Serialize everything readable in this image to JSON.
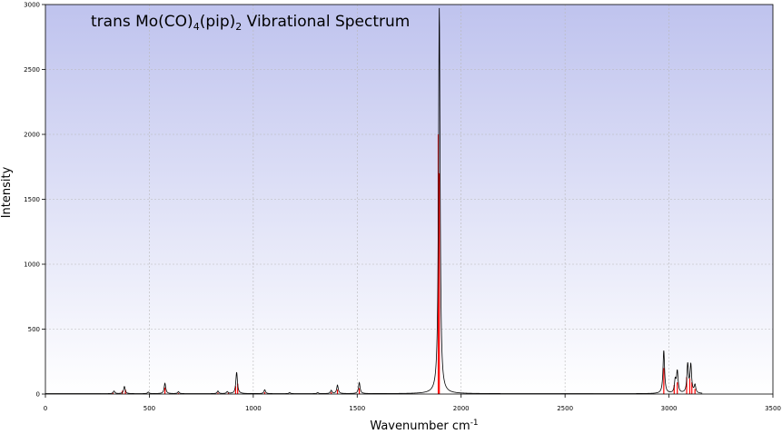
{
  "chart_data": {
    "type": "line",
    "title_prefix": "trans Mo(CO)",
    "title_sub1": "4",
    "title_mid": "(pip)",
    "title_sub2": "2",
    "title_suffix": " Vibrational Spectrum",
    "xlabel": "Wavenumber cm",
    "xlabel_sup": "-1",
    "ylabel": "Intensity",
    "xlim": [
      0,
      3500
    ],
    "ylim": [
      0,
      3000
    ],
    "xticks": [
      0,
      500,
      1000,
      1500,
      2000,
      2500,
      3000,
      3500
    ],
    "yticks": [
      0,
      500,
      1000,
      1500,
      2000,
      2500,
      3000
    ],
    "grid": true,
    "background_gradient": [
      "#bfc3ee",
      "#ffffff"
    ],
    "colors": {
      "spectrum": "#000000",
      "sticks": "#ff0000",
      "grid": "#b8b8b8"
    },
    "series": [
      {
        "kind": "spectrum",
        "values": [
          [
            330,
            20
          ],
          [
            380,
            55
          ],
          [
            495,
            12
          ],
          [
            575,
            80
          ],
          [
            640,
            15
          ],
          [
            830,
            20
          ],
          [
            875,
            15
          ],
          [
            920,
            165
          ],
          [
            1055,
            30
          ],
          [
            1175,
            8
          ],
          [
            1310,
            8
          ],
          [
            1375,
            25
          ],
          [
            1405,
            65
          ],
          [
            1510,
            85
          ],
          [
            1895,
            2970
          ],
          [
            2975,
            330
          ],
          [
            3030,
            95
          ],
          [
            3040,
            165
          ],
          [
            3090,
            220
          ],
          [
            3105,
            215
          ],
          [
            3125,
            60
          ]
        ]
      },
      {
        "kind": "sticks",
        "values": [
          [
            325,
            10
          ],
          [
            370,
            25
          ],
          [
            385,
            35
          ],
          [
            575,
            50
          ],
          [
            640,
            8
          ],
          [
            830,
            10
          ],
          [
            880,
            10
          ],
          [
            915,
            60
          ],
          [
            925,
            80
          ],
          [
            1055,
            15
          ],
          [
            1375,
            15
          ],
          [
            1405,
            35
          ],
          [
            1510,
            45
          ],
          [
            1890,
            2000
          ],
          [
            1895,
            1700
          ],
          [
            2975,
            200
          ],
          [
            3025,
            70
          ],
          [
            3040,
            90
          ],
          [
            3085,
            130
          ],
          [
            3100,
            120
          ],
          [
            3110,
            90
          ],
          [
            3125,
            40
          ]
        ]
      }
    ]
  }
}
